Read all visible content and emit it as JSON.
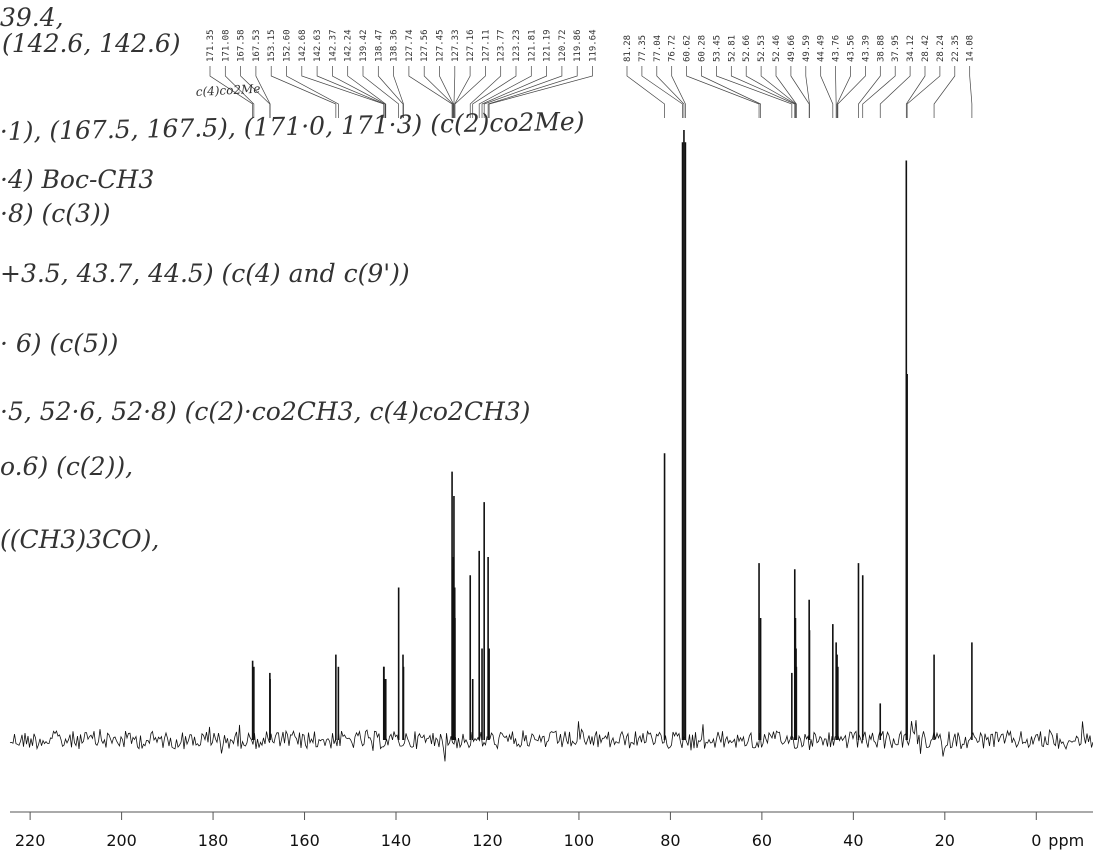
{
  "chart_data": {
    "type": "spectrum",
    "x_unit": "ppm",
    "xlim": [
      224.4,
      -12.4
    ],
    "xticks": [
      220,
      200,
      180,
      160,
      140,
      120,
      100,
      80,
      60,
      40,
      20,
      0
    ],
    "ylim": [
      0,
      100
    ],
    "color": "#111111",
    "x": [
      171.35,
      171.08,
      167.58,
      167.53,
      153.15,
      {
        "value": 152.6,
        "label": "152.60"
      },
      142.68,
      142.63,
      142.37,
      142.24,
      139.42,
      138.47,
      138.36,
      127.74,
      127.56,
      127.45,
      127.33,
      127.16,
      127.11,
      123.77,
      123.23,
      121.81,
      121.19,
      120.72,
      119.86,
      119.64,
      81.28,
      77.35,
      77.04,
      76.72,
      60.62,
      60.28,
      53.45,
      52.81,
      52.66,
      52.53,
      52.46,
      49.66,
      49.59,
      44.49,
      43.76,
      43.56,
      43.39,
      38.88,
      37.95,
      34.12,
      28.42,
      28.24,
      22.35,
      14.08
    ],
    "values": [
      13,
      12,
      11,
      10,
      14,
      12,
      12,
      12,
      10,
      10,
      25,
      14,
      12,
      44,
      28,
      30,
      40,
      25,
      20,
      27,
      10,
      31,
      15,
      39,
      30,
      15,
      47,
      98,
      100,
      98,
      29,
      20,
      11,
      28,
      20,
      15,
      12,
      23,
      18,
      19,
      16,
      14,
      12,
      29,
      27,
      6,
      95,
      60,
      14,
      16
    ],
    "annotations": [
      "39.4,",
      "(142.6, 142.6)",
      "c(4)co2Me",
      "·1), (167.5, 167.5), (171·0, 171·3) (c(2)co2Me)",
      "·4) Boc-CH3",
      "·8) (c(3))",
      "+3.5, 43.7, 44.5) (c(4) and c(9'))",
      "· 6) (c(5))",
      "·5, 52·6, 52·8) (c(2)·co2CH3, c(4)co2CH3)",
      "o.6) (c(2)),",
      "((CH3)3CO),"
    ]
  }
}
